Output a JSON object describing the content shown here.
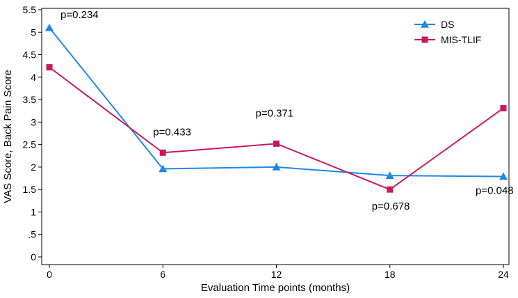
{
  "chart_data": {
    "type": "line",
    "xlabel": "Evaluation Time points (months)",
    "ylabel": "VAS Score, Back Pain Score",
    "x": [
      0,
      6,
      12,
      18,
      24
    ],
    "xlim": [
      0,
      24
    ],
    "ylim": [
      0,
      5.5
    ],
    "x_ticks": [
      "0",
      "6",
      "12",
      "18",
      "24"
    ],
    "y_ticks": [
      {
        "value": 0,
        "label": "0"
      },
      {
        "value": 0.5,
        "label": ".5"
      },
      {
        "value": 1,
        "label": "1"
      },
      {
        "value": 1.5,
        "label": "1.5"
      },
      {
        "value": 2,
        "label": "2"
      },
      {
        "value": 2.5,
        "label": "2.5"
      },
      {
        "value": 3,
        "label": "3"
      },
      {
        "value": 3.5,
        "label": "3.5"
      },
      {
        "value": 4,
        "label": "4"
      },
      {
        "value": 4.5,
        "label": "4.5"
      },
      {
        "value": 5,
        "label": "5"
      },
      {
        "value": 5.5,
        "label": "5.5"
      }
    ],
    "grid": false,
    "legend_position": "top-right",
    "series": [
      {
        "name": "DS",
        "color": "#1f86e8",
        "marker": "triangle",
        "values": [
          5.1,
          1.96,
          2.0,
          1.81,
          1.79
        ]
      },
      {
        "name": "MIS-TLIF",
        "color": "#c8195a",
        "marker": "square",
        "values": [
          4.22,
          2.32,
          2.52,
          1.5,
          3.31
        ]
      }
    ],
    "annotations": [
      {
        "text": "p=0.234",
        "x": 0,
        "y": 5.1
      },
      {
        "text": "p=0.433",
        "x": 6,
        "y": 2.32
      },
      {
        "text": "p=0.371",
        "x": 12,
        "y": 2.52
      },
      {
        "text": "p=0.678",
        "x": 18,
        "y": 1.5
      },
      {
        "text": "p=0.048",
        "x": 24,
        "y": 1.79
      }
    ]
  }
}
